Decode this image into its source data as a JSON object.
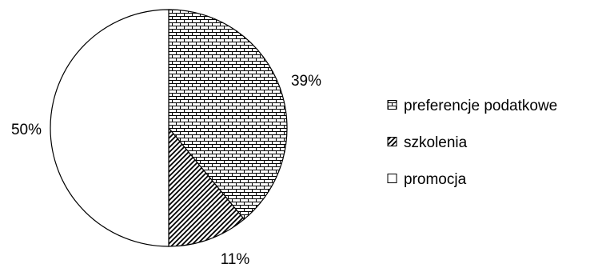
{
  "chart_data": {
    "type": "pie",
    "title": "",
    "slices": [
      {
        "name": "preferencje podatkowe",
        "value": 39,
        "label": "39%",
        "pattern": "brick"
      },
      {
        "name": "szkolenia",
        "value": 11,
        "label": "11%",
        "pattern": "diagonal"
      },
      {
        "name": "promocja",
        "value": 50,
        "label": "50%",
        "pattern": "none"
      }
    ],
    "legend_position": "right",
    "colors": {
      "stroke": "#000000",
      "fill": "#ffffff"
    }
  }
}
